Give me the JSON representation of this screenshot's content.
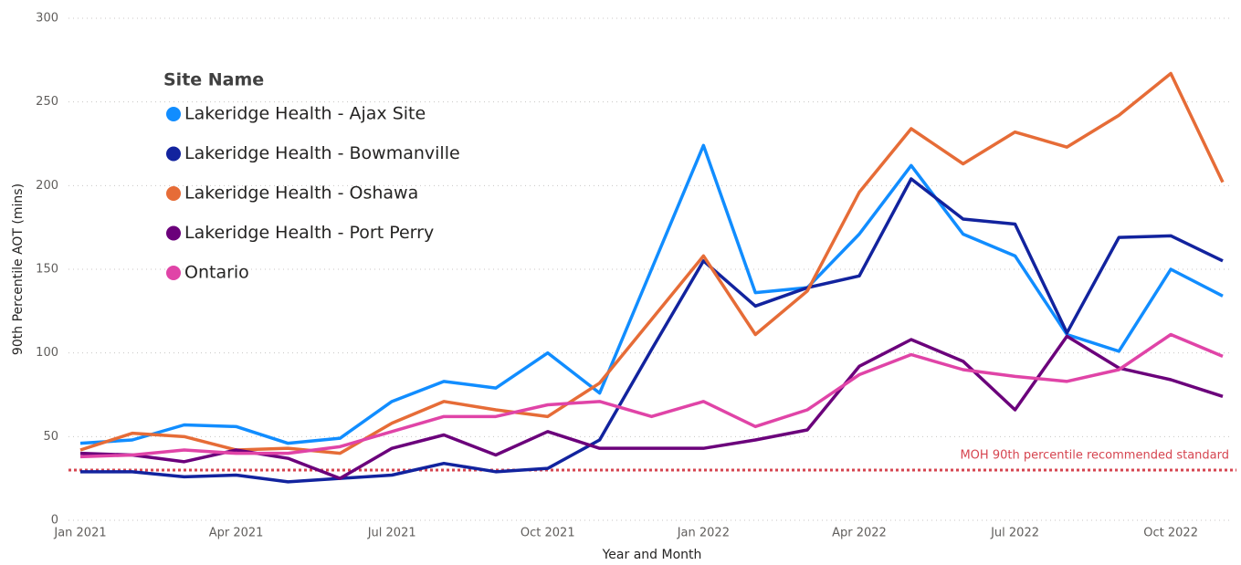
{
  "chart_data": {
    "type": "line",
    "x_label": "Year and Month",
    "y_label": "90th Percentile AOT (mins)",
    "legend_title": "Site Name",
    "legend_position": "upper left",
    "grid": true,
    "categories": [
      "Jan 2021",
      null,
      null,
      "Apr 2021",
      null,
      null,
      "Jul 2021",
      null,
      null,
      "Oct 2021",
      null,
      null,
      "Jan 2022",
      null,
      null,
      "Apr 2022",
      null,
      null,
      "Jul 2022",
      null,
      null,
      "Oct 2022",
      null
    ],
    "ylim": [
      0,
      300
    ],
    "yticks": [
      0,
      50,
      100,
      150,
      200,
      250,
      300
    ],
    "series": [
      {
        "name": "Lakeridge Health - Ajax Site",
        "color": "#118DFF",
        "values": [
          46,
          48,
          57,
          56,
          46,
          49,
          71,
          83,
          79,
          100,
          76,
          150,
          224,
          136,
          139,
          171,
          212,
          171,
          158,
          111,
          101,
          150,
          134
        ]
      },
      {
        "name": "Lakeridge Health - Bowmanville",
        "color": "#12239E",
        "values": [
          29,
          29,
          26,
          27,
          23,
          25,
          27,
          34,
          29,
          31,
          48,
          102,
          155,
          128,
          139,
          146,
          204,
          180,
          177,
          112,
          169,
          170,
          155
        ]
      },
      {
        "name": "Lakeridge Health - Oshawa",
        "color": "#E66C37",
        "values": [
          42,
          52,
          50,
          42,
          43,
          40,
          58,
          71,
          66,
          62,
          82,
          120,
          158,
          111,
          137,
          196,
          234,
          213,
          232,
          223,
          242,
          267,
          202
        ]
      },
      {
        "name": "Lakeridge Health - Port Perry",
        "color": "#6B007B",
        "values": [
          40,
          39,
          35,
          42,
          37,
          25,
          43,
          51,
          39,
          53,
          43,
          43,
          43,
          48,
          54,
          92,
          108,
          95,
          66,
          110,
          91,
          84,
          74
        ]
      },
      {
        "name": "Ontario",
        "color": "#E044A7",
        "values": [
          38,
          39,
          42,
          40,
          40,
          44,
          53,
          62,
          62,
          69,
          71,
          62,
          71,
          56,
          66,
          87,
          99,
          90,
          86,
          83,
          90,
          111,
          98
        ]
      }
    ],
    "reference_line": {
      "value": 30,
      "label": "MOH 90th percentile recommended standard",
      "color": "#D64550"
    }
  }
}
